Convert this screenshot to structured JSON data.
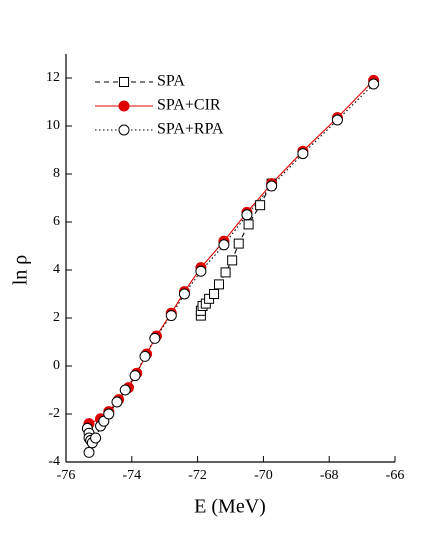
{
  "chart_data": {
    "type": "line",
    "x_label": "E  (MeV)",
    "y_label": "ln ρ",
    "xlim": [
      -76,
      -66
    ],
    "xticks": [
      -76,
      -74,
      -72,
      -70,
      -68,
      -66
    ],
    "ylim": [
      -4,
      13
    ],
    "yticks": [
      -4,
      -2,
      0,
      2,
      4,
      6,
      8,
      10,
      12
    ],
    "legend": "upper left",
    "series": [
      {
        "name": "SPA",
        "color": "#000000",
        "marker": "square",
        "filled": false,
        "line": "dashed",
        "x": [
          -71.9,
          -71.9,
          -71.85,
          -71.75,
          -71.65,
          -71.5,
          -71.35,
          -71.15,
          -70.95,
          -70.75,
          -70.45,
          -70.1,
          -69.75
        ],
        "values": [
          2.1,
          2.3,
          2.5,
          2.6,
          2.8,
          3.0,
          3.4,
          3.9,
          4.4,
          5.1,
          5.9,
          6.7,
          7.6
        ]
      },
      {
        "name": "SPA+CIR",
        "color": "#e00000",
        "marker": "circle",
        "filled": true,
        "line": "solid",
        "x": [
          -75.3,
          -74.95,
          -74.7,
          -74.4,
          -74.1,
          -73.85,
          -73.55,
          -73.25,
          -72.8,
          -72.4,
          -71.9,
          -71.2,
          -70.5,
          -69.75,
          -68.8,
          -67.75,
          -66.65
        ],
        "values": [
          -2.4,
          -2.2,
          -1.9,
          -1.4,
          -0.9,
          -0.3,
          0.5,
          1.25,
          2.2,
          3.1,
          4.1,
          5.2,
          6.4,
          7.6,
          8.95,
          10.35,
          11.9
        ]
      },
      {
        "name": "SPA+RPA",
        "color": "#000000",
        "marker": "circle",
        "filled": false,
        "line": "dotted",
        "x": [
          -75.3,
          -75.35,
          -75.3,
          -75.3,
          -75.25,
          -75.2,
          -75.1,
          -74.95,
          -74.85,
          -74.7,
          -74.45,
          -74.2,
          -73.9,
          -73.6,
          -73.3,
          -72.8,
          -72.4,
          -71.9,
          -71.2,
          -70.5,
          -69.75,
          -68.8,
          -67.75,
          -66.65
        ],
        "values": [
          -3.6,
          -2.6,
          -2.8,
          -3.0,
          -3.1,
          -3.2,
          -3.0,
          -2.5,
          -2.3,
          -2.0,
          -1.5,
          -1.0,
          -0.4,
          0.4,
          1.15,
          2.1,
          3.0,
          3.95,
          5.05,
          6.3,
          7.5,
          8.85,
          10.25,
          11.75
        ]
      }
    ]
  }
}
